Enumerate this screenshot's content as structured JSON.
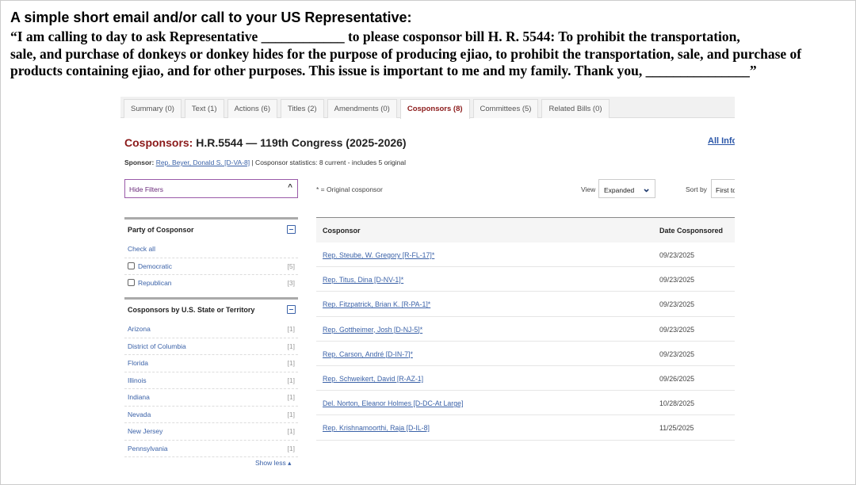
{
  "header": {
    "heading": "A simple short email and/or call to your US Representative:",
    "quote_lines": [
      "“I am calling to day to ask Representative ____________ to please cosponsor bill H. R. 5544: To prohibit the transportation,",
      "sale, and purchase of donkeys or donkey hides for the purpose of producing ejiao, to prohibit the transportation, sale, and purchase of",
      "products containing ejiao, and for other purposes. This issue is important to me and my family. Thank you, _______________”"
    ]
  },
  "tabs": [
    {
      "label": "Summary (0)"
    },
    {
      "label": "Text (1)"
    },
    {
      "label": "Actions (6)"
    },
    {
      "label": "Titles (2)"
    },
    {
      "label": "Amendments (0)"
    },
    {
      "label": "Cosponsors (8)",
      "active": true
    },
    {
      "label": "Committees (5)"
    },
    {
      "label": "Related Bills (0)"
    }
  ],
  "page": {
    "title_label": "Cosponsors:",
    "title_rest": " H.R.5544 — 119th Congress (2025-2026)",
    "all_info": "All Info",
    "sponsor_label": "Sponsor:",
    "sponsor_link": "Rep. Beyer, Donald S. [D-VA-8]",
    "sponsor_stats": " | Cosponsor statistics: 8 current - includes 5 original",
    "hide_filters": "Hide Filters",
    "original_note": "* = Original cosponsor",
    "view_label": "View",
    "view_value": "Expanded",
    "sort_label": "Sort by",
    "sort_value": "First to"
  },
  "filters": {
    "party_heading": "Party of Cosponsor",
    "check_all": "Check all",
    "parties": [
      {
        "label": "Democratic",
        "count": "[5]"
      },
      {
        "label": "Republican",
        "count": "[3]"
      }
    ],
    "state_heading": "Cosponsors by U.S. State or Territory",
    "states": [
      {
        "label": "Arizona",
        "count": "[1]"
      },
      {
        "label": "District of Columbia",
        "count": "[1]"
      },
      {
        "label": "Florida",
        "count": "[1]"
      },
      {
        "label": "Illinois",
        "count": "[1]"
      },
      {
        "label": "Indiana",
        "count": "[1]"
      },
      {
        "label": "Nevada",
        "count": "[1]"
      },
      {
        "label": "New Jersey",
        "count": "[1]"
      },
      {
        "label": "Pennsylvania",
        "count": "[1]"
      }
    ],
    "show_less": "Show less ▴"
  },
  "table": {
    "headers": [
      "Cosponsor",
      "Date Cosponsored"
    ],
    "rows": [
      {
        "name": "Rep. Steube, W. Gregory [R-FL-17]*",
        "date": "09/23/2025"
      },
      {
        "name": "Rep. Titus, Dina [D-NV-1]*",
        "date": "09/23/2025"
      },
      {
        "name": "Rep. Fitzpatrick, Brian K. [R-PA-1]*",
        "date": "09/23/2025"
      },
      {
        "name": "Rep. Gottheimer, Josh [D-NJ-5]*",
        "date": "09/23/2025"
      },
      {
        "name": "Rep. Carson, André [D-IN-7]*",
        "date": "09/23/2025"
      },
      {
        "name": "Rep. Schweikert, David [R-AZ-1]",
        "date": "09/26/2025"
      },
      {
        "name": "Del. Norton, Eleanor Holmes [D-DC-At Large]",
        "date": "10/28/2025"
      },
      {
        "name": "Rep. Krishnamoorthi, Raja [D-IL-8]",
        "date": "11/25/2025"
      }
    ]
  },
  "colors": {
    "title_accent": "#8b1a1a",
    "link": "#3b62a8",
    "filter_border": "#9a5aa8"
  }
}
